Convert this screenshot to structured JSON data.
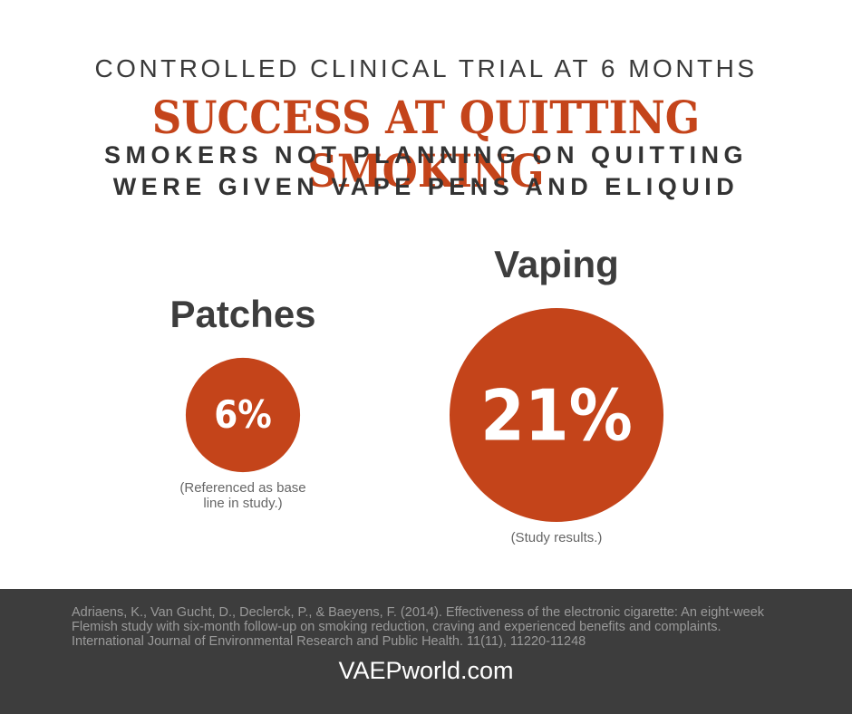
{
  "chart_data": {
    "type": "bubble",
    "title": "CONTROLLED CLINICAL TRIAL AT 6 MONTHS",
    "headline": "SUCCESS AT QUITTING SMOKING",
    "subtitle": [
      "SMOKERS NOT PLANNING ON QUITTING",
      "WERE GIVEN VAPE PENS AND ELIQUID"
    ],
    "categories": [
      "Patches",
      "Vaping"
    ],
    "values": [
      6,
      21
    ],
    "value_labels": [
      "6%",
      "21%"
    ],
    "notes": [
      "(Referenced as base line in study.)",
      "(Study results.)"
    ],
    "color": "#c4441a"
  },
  "footer": {
    "citation": "Adriaens, K., Van Gucht, D., Declerck, P., & Baeyens, F. (2014). Effectiveness of the electronic cigarette: An eight-week Flemish study with six-month follow-up on smoking reduction, craving and experienced benefits and complaints. International Journal of Environmental Research and Public Health. 11(11), 11220-11248",
    "brand": "VAEPworld.com"
  }
}
